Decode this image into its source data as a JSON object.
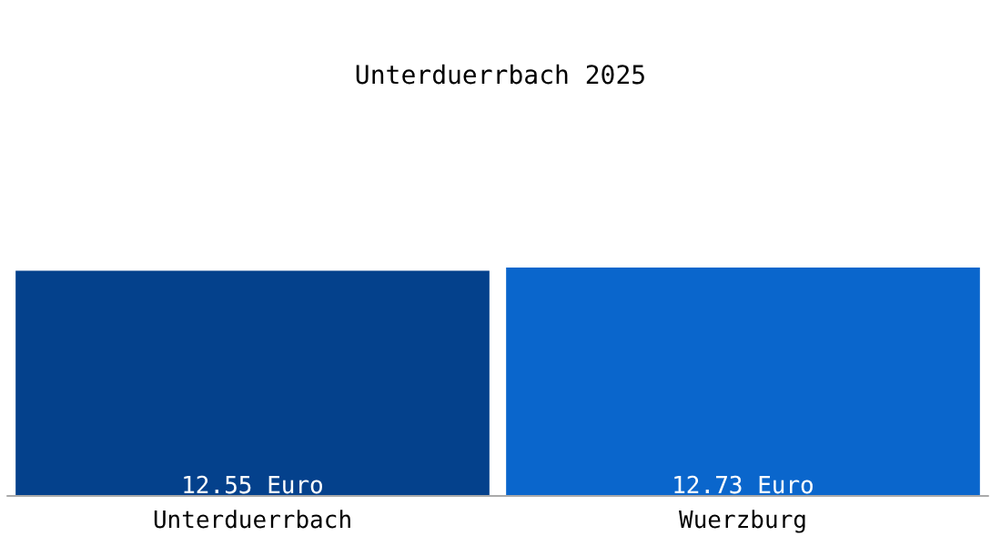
{
  "chart_data": {
    "type": "bar",
    "title": "Unterduerrbach 2025",
    "categories": [
      "Unterduerrbach",
      "Wuerzburg"
    ],
    "values": [
      12.55,
      12.73
    ],
    "colors": [
      "#04418c",
      "#0a66cc"
    ],
    "value_labels": [
      "12.55 Euro",
      "12.73 Euro"
    ],
    "tick_labels": "x",
    "grid": false
  }
}
